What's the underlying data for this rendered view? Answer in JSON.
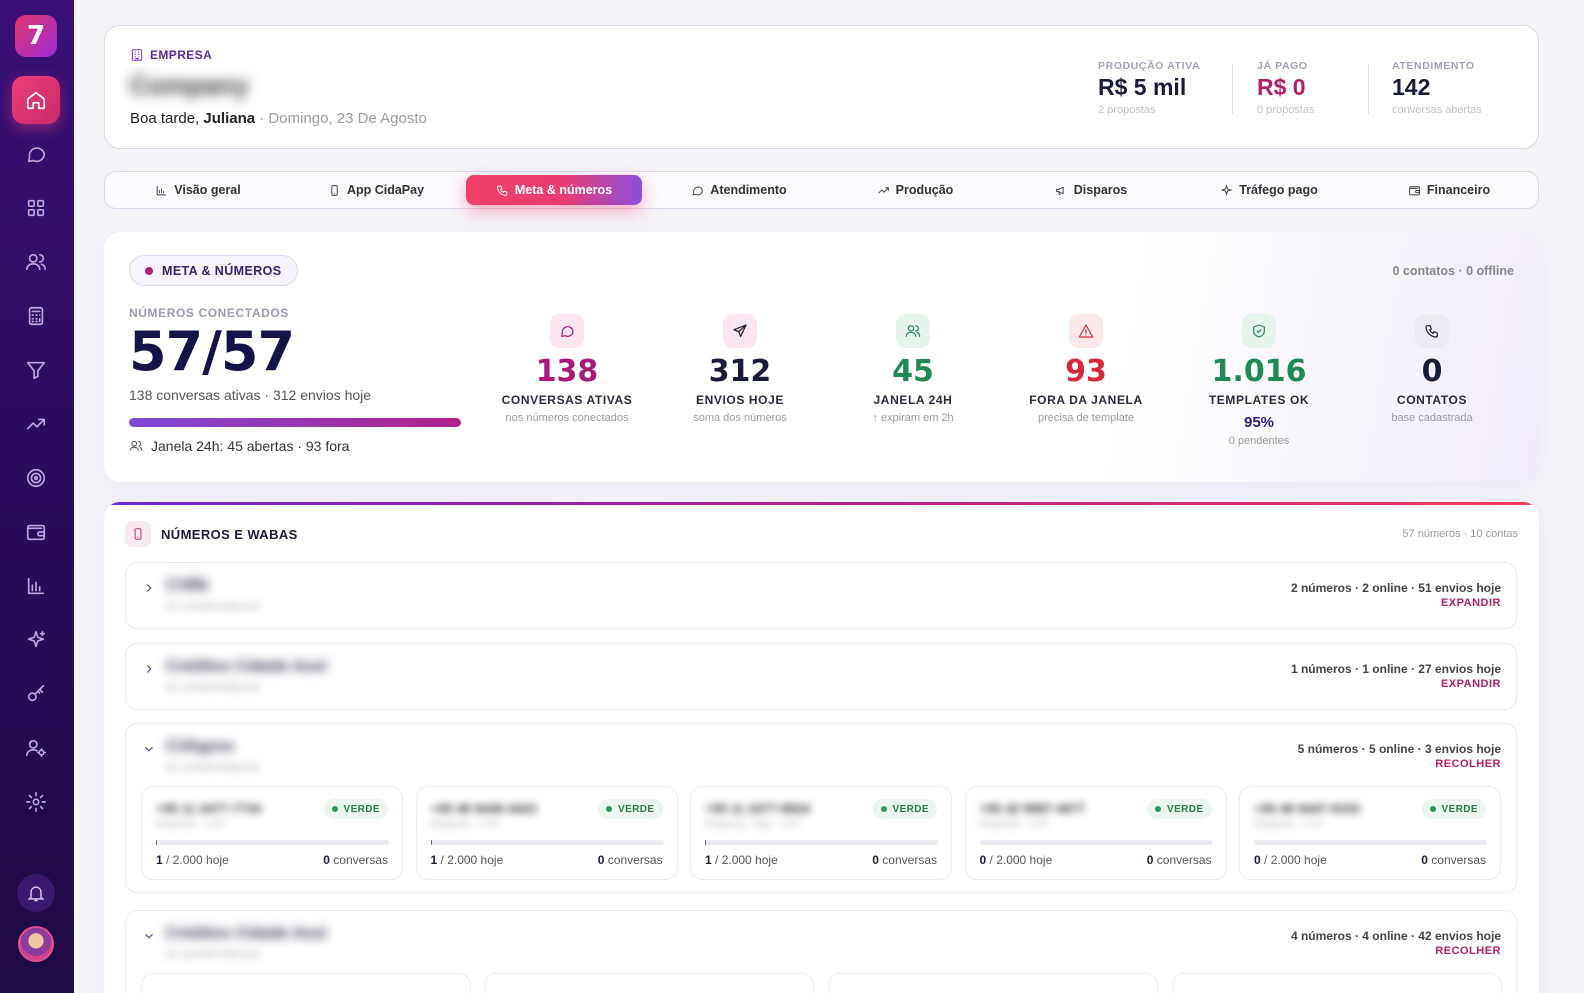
{
  "sidebar": {
    "logo": "7",
    "items": [
      "home-icon",
      "chat-icon",
      "grid-icon",
      "users-icon",
      "calculator-icon",
      "filter-icon",
      "trending-icon",
      "target-icon",
      "wallet-icon",
      "chart-icon",
      "sparkle-icon",
      "key-icon",
      "user-gear-icon",
      "settings-icon"
    ]
  },
  "header": {
    "section_label": "EMPRESA",
    "company": "Company",
    "greeting_prefix": "Boa tarde, ",
    "user": "Juliana",
    "date": " · Domingo, 23 De Agosto",
    "stats": [
      {
        "label": "PRODUÇÃO ATIVA",
        "value": "R$ 5 mil",
        "sub": "2 propostas",
        "color": "#1a1a3a"
      },
      {
        "label": "JÁ PAGO",
        "value": "R$ 0",
        "sub": "0 propostas",
        "color": "#b0206a"
      },
      {
        "label": "ATENDIMENTO",
        "value": "142",
        "sub": "conversas abertas",
        "color": "#1a1a3a"
      }
    ]
  },
  "tabs": [
    {
      "label": "Visão geral",
      "icon": "bar-chart-icon"
    },
    {
      "label": "App CidaPay",
      "icon": "phone-icon"
    },
    {
      "label": "Meta & números",
      "icon": "call-icon",
      "active": true
    },
    {
      "label": "Atendimento",
      "icon": "chat-icon"
    },
    {
      "label": "Produção",
      "icon": "trending-icon"
    },
    {
      "label": "Disparos",
      "icon": "megaphone-icon"
    },
    {
      "label": "Tráfego pago",
      "icon": "sparkle-icon"
    },
    {
      "label": "Financeiro",
      "icon": "wallet-icon"
    }
  ],
  "meta": {
    "pill": "META & NÚMEROS",
    "status": "0 contatos · 0 offline",
    "connected_label": "NÚMEROS CONECTADOS",
    "connected_value": "57/57",
    "connected_sub": "138 conversas ativas · 312 envios hoje",
    "connected_fraction": 1.0,
    "window_text": "Janela 24h: 45 abertas · 93 fora",
    "kpis": [
      {
        "icon": "chat-icon",
        "value": "138",
        "label": "CONVERSAS ATIVAS",
        "sub": "nos números conectados",
        "color": "#a81a7a",
        "bg": "#fbe6f2"
      },
      {
        "icon": "send-icon",
        "value": "312",
        "label": "ENVIOS HOJE",
        "sub": "soma dos números",
        "color": "#1a1a3a",
        "bg": "#fbe6f2"
      },
      {
        "icon": "users-icon",
        "value": "45",
        "label": "JANELA 24H",
        "sub": "↑ expiram em 2h",
        "color": "#1f8a55",
        "bg": "#e6f5ec"
      },
      {
        "icon": "alert-icon",
        "value": "93",
        "label": "FORA DA JANELA",
        "sub": "precisa de template",
        "color": "#d6283a",
        "bg": "#fde8ea"
      },
      {
        "icon": "shield-icon",
        "value": "1.016",
        "label": "TEMPLATES OK",
        "pct": "95%",
        "sub": "0 pendentes",
        "color": "#1f8a55",
        "bg": "#e6f5ec"
      },
      {
        "icon": "phone-icon",
        "value": "0",
        "label": "CONTATOS",
        "sub": "base cadastrada",
        "color": "#1a1a3a",
        "bg": "#ecebf2"
      }
    ]
  },
  "wabas": {
    "title": "NÚMEROS E WABAS",
    "count": "57 números · 10 contas",
    "groups": [
      {
        "name": "CVBk",
        "id": "ID 1234567890123",
        "stats": "2 números · 2 online · 51 envios hoje",
        "action": "EXPANDIR",
        "open": false
      },
      {
        "name": "Créditos Cidade Azul",
        "id": "ID 1234567890123",
        "stats": "1 números · 1 online · 27 envios hoje",
        "action": "EXPANDIR",
        "open": false
      },
      {
        "name": "CVAgora",
        "id": "ID 1234567890123",
        "stats": "5 números · 5 online · 3 envios hoje",
        "action": "RECOLHER",
        "open": true,
        "numbers": [
          {
            "phone": "+55 11 2477-7734",
            "owner": "Empresa · 1 Nº",
            "badge": "VERDE",
            "sent": "1",
            "limit": " / 2.000 hoje",
            "conv": "0",
            "conv_label": " conversas",
            "usage": 0.0005
          },
          {
            "phone": "+55 48 9449-3423",
            "owner": "Empresa · 1 Nº",
            "badge": "VERDE",
            "sent": "1",
            "limit": " / 2.000 hoje",
            "conv": "0",
            "conv_label": " conversas",
            "usage": 0.0005
          },
          {
            "phone": "+55 11 2477-8924",
            "owner": "Empresa · Equ · 1 Nº",
            "badge": "VERDE",
            "sent": "1",
            "limit": " / 2.000 hoje",
            "conv": "0",
            "conv_label": " conversas",
            "usage": 0.0005
          },
          {
            "phone": "+55 42 9987-4977",
            "owner": "Empresa · 1 Nº",
            "badge": "VERDE",
            "sent": "0",
            "limit": " / 2.000 hoje",
            "conv": "0",
            "conv_label": " conversas",
            "usage": 0
          },
          {
            "phone": "+55 48 9447-9153",
            "owner": "Empresa · 1 Nº",
            "badge": "VERDE",
            "sent": "0",
            "limit": " / 2.000 hoje",
            "conv": "0",
            "conv_label": " conversas",
            "usage": 0
          }
        ]
      },
      {
        "name": "Créditos Cidade Azul",
        "id": "ID 1234567890123",
        "stats": "4 números · 4 online · 42 envios hoje",
        "action": "RECOLHER",
        "open": true
      }
    ]
  }
}
